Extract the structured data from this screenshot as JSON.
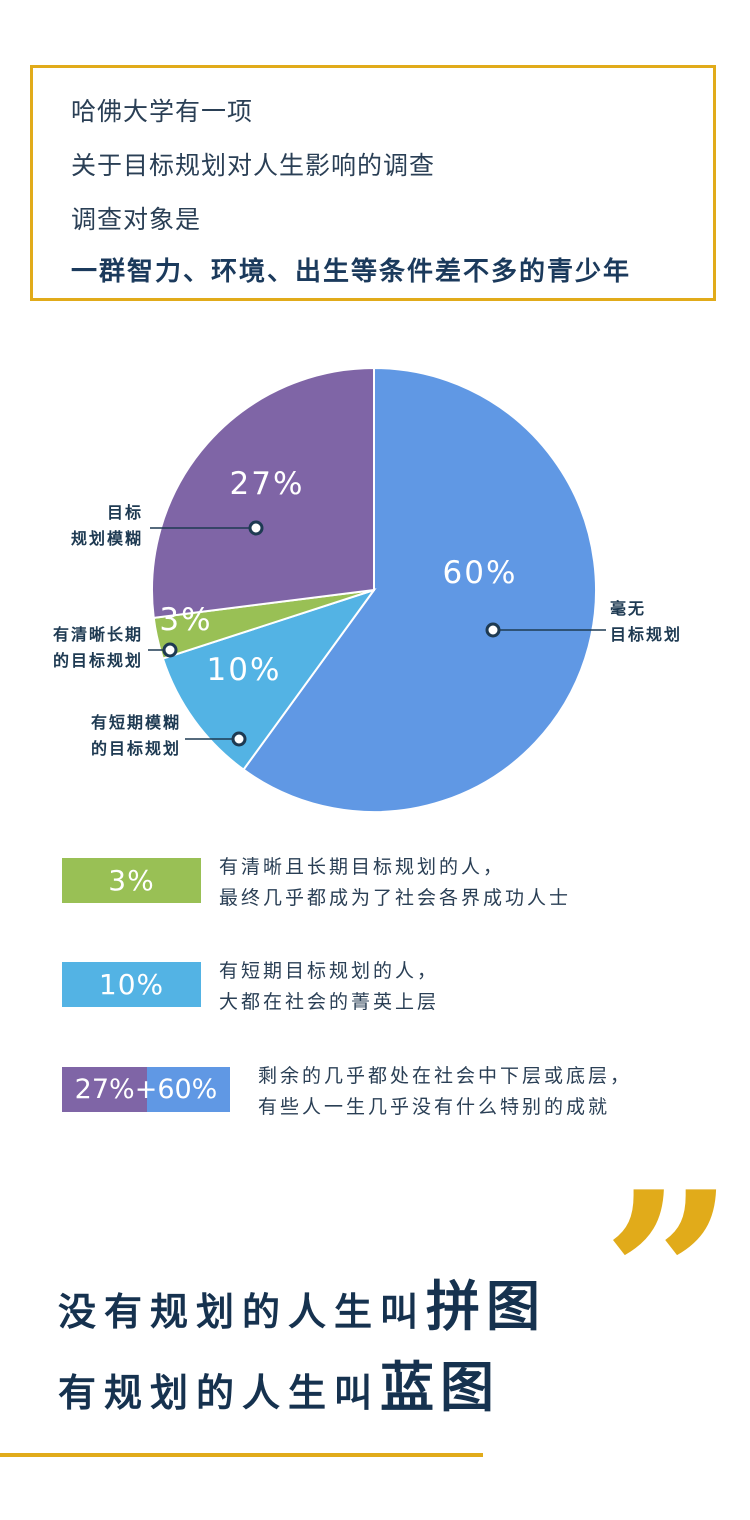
{
  "intro": {
    "lines": [
      "哈佛大学有一项",
      "关于目标规划对人生影响的调查",
      "调查对象是",
      "一群智力、环境、出生等条件差不多的青少年"
    ]
  },
  "chart_data": {
    "type": "pie",
    "slices": [
      {
        "label": "毫无目标规划",
        "value": 60,
        "value_label": "60%",
        "color": "#6098e4",
        "label_lines": [
          "毫无",
          "目标规划"
        ]
      },
      {
        "label": "有短期模糊的目标规划",
        "value": 10,
        "value_label": "10%",
        "color": "#53b3e4",
        "label_lines": [
          "有短期模糊",
          "的目标规划"
        ]
      },
      {
        "label": "有清晰长期的目标规划",
        "value": 3,
        "value_label": "3%",
        "color": "#99c055",
        "label_lines": [
          "有清晰长期",
          "的目标规划"
        ]
      },
      {
        "label": "目标规划模糊",
        "value": 27,
        "value_label": "27%",
        "color": "#7f65a6",
        "label_lines": [
          "目标",
          "规划模糊"
        ]
      }
    ]
  },
  "legend": {
    "items": [
      {
        "swatch_text": "3%",
        "color": "#99c055",
        "lines": [
          "有清晰且长期目标规划的人，",
          "最终几乎都成为了社会各界成功人士"
        ]
      },
      {
        "swatch_text": "10%",
        "color": "#53b3e4",
        "lines": [
          "有短期目标规划的人，",
          "大都在社会的菁英上层"
        ]
      },
      {
        "swatch_text_a": "27%",
        "swatch_plus": "+",
        "swatch_text_b": "60%",
        "color_a": "#7f65a6",
        "color_b": "#6098e4",
        "lines": [
          "剩余的几乎都处在社会中下层或底层，",
          "有些人一生几乎没有什么特别的成就"
        ]
      }
    ]
  },
  "slogan": {
    "line1_prefix": "没有规划的人生叫",
    "line1_emph": "拼图",
    "line2_prefix": "有规划的人生叫",
    "line2_emph": "蓝图"
  },
  "quote_mark": "”",
  "colors": {
    "accent": "#e1ab1a",
    "navy": "#16324f"
  }
}
